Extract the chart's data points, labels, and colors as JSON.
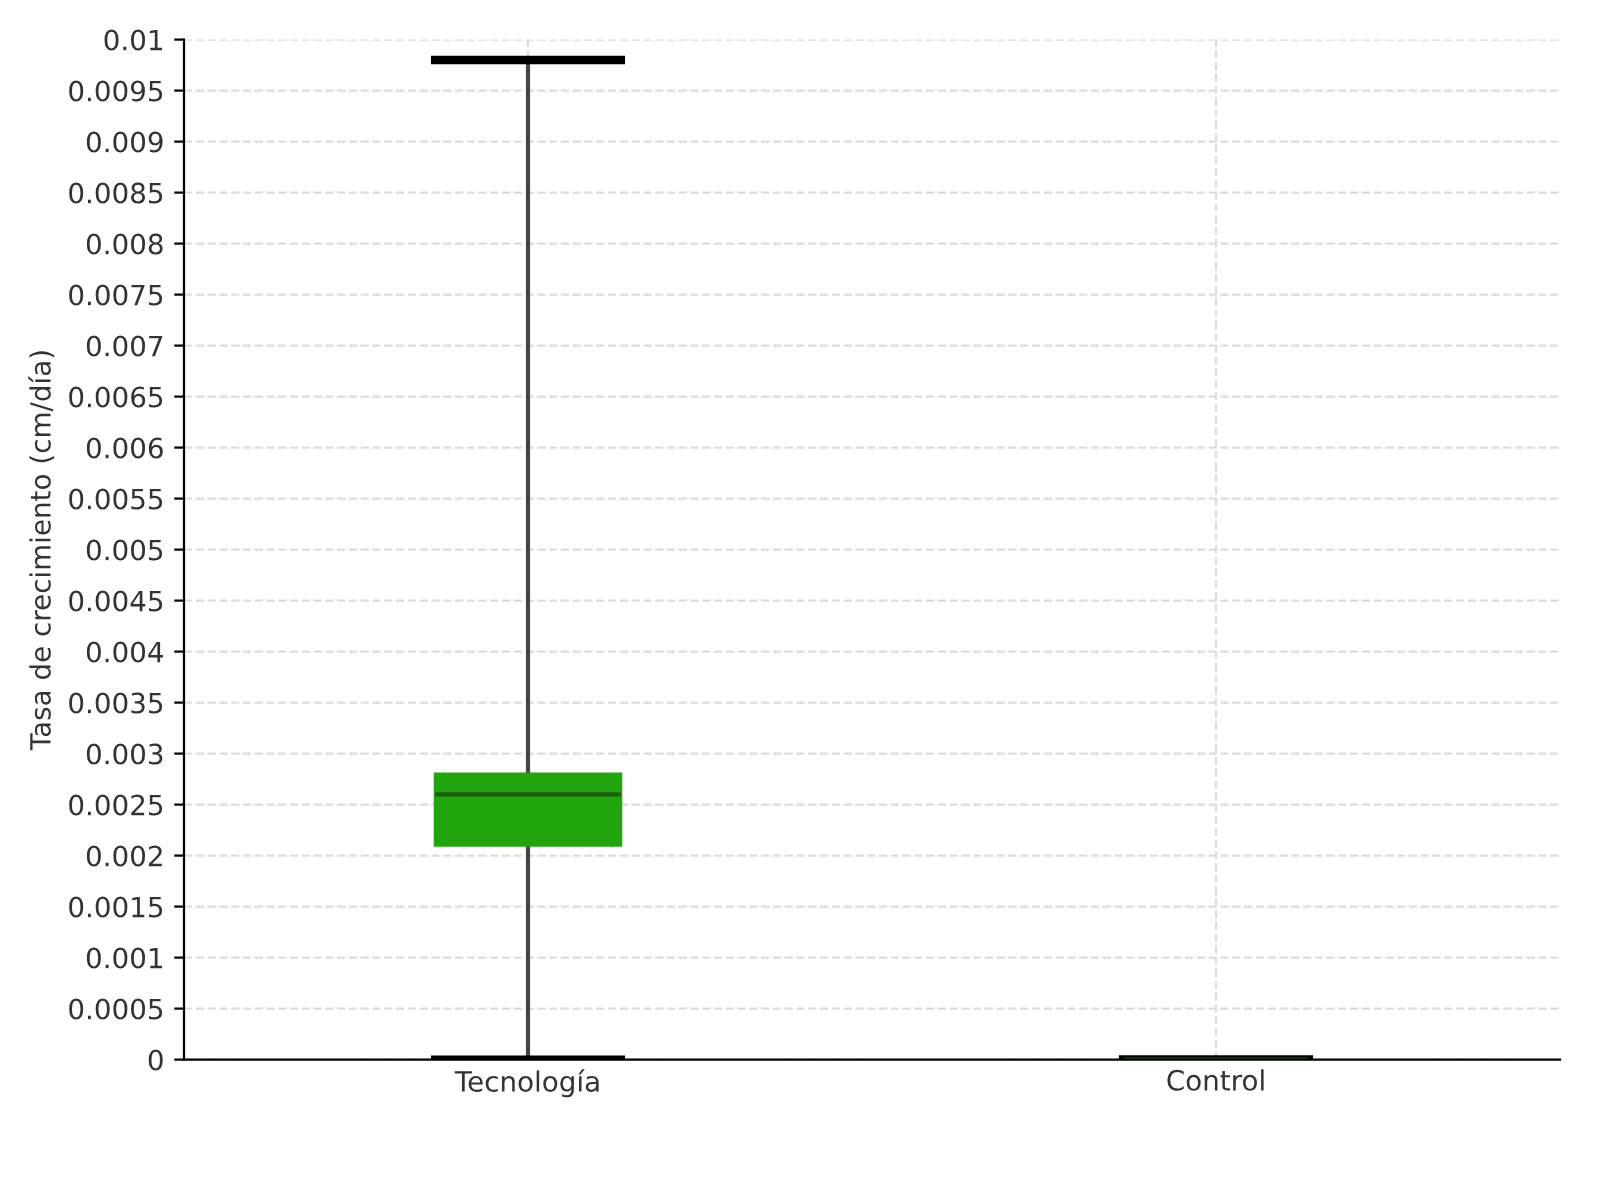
{
  "chart_data": {
    "type": "box",
    "ylabel": "Tasa de crecimiento (cm/día)",
    "categories": [
      "Tecnología",
      "Control"
    ],
    "boxes": [
      {
        "low": 0,
        "q1": 0.0021,
        "median": 0.0026,
        "q3": 0.0028,
        "high": 0.0098
      },
      {
        "low": 0,
        "q1": 0,
        "median": 0,
        "q3": 0,
        "high": 0
      }
    ],
    "color": "#22a40f",
    "ylim": [
      0,
      0.01
    ],
    "yticks": [
      0,
      0.0005,
      0.001,
      0.0015,
      0.002,
      0.0025,
      0.003,
      0.0035,
      0.004,
      0.0045,
      0.005,
      0.0055,
      0.006,
      0.0065,
      0.007,
      0.0075,
      0.008,
      0.0085,
      0.009,
      0.0095,
      0.01
    ],
    "grid": true
  }
}
